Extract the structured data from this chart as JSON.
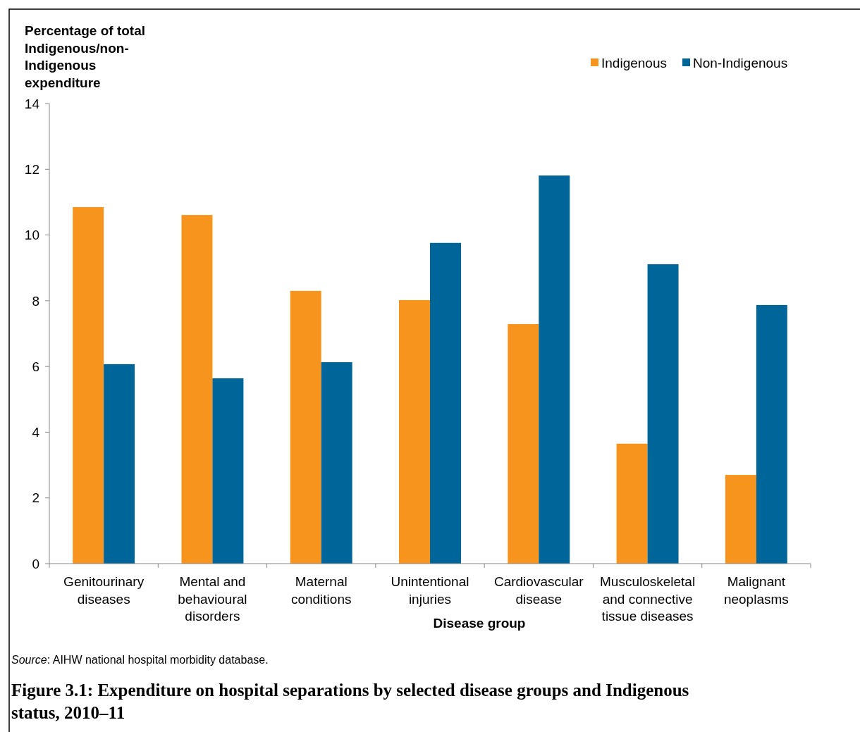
{
  "chart_data": {
    "type": "bar",
    "title": "Figure 3.1: Expenditure on hospital separations by selected disease groups and Indigenous status, 2010–11",
    "xlabel": "Disease group",
    "ylabel": "Percentage of total Indigenous/non-Indigenous expenditure",
    "annotations": [
      "Source: AIHW national hospital morbidity database."
    ],
    "categories": [
      "Genitourinary diseases",
      "Mental and behavioural disorders",
      "Maternal conditions",
      "Unintentional injuries",
      "Cardiovascular disease",
      "Musculoskeletal and connective tissue diseases",
      "Malignant neoplasms"
    ],
    "series": [
      {
        "name": "Indigenous",
        "color": "#f7941d",
        "values": [
          10.85,
          10.61,
          8.3,
          8.02,
          7.29,
          3.65,
          2.7
        ]
      },
      {
        "name": "Non-Indigenous",
        "color": "#006699",
        "values": [
          6.07,
          5.64,
          6.13,
          9.76,
          11.81,
          9.11,
          7.87
        ]
      }
    ],
    "ylim": [
      0,
      14
    ],
    "yticks": [
      0,
      2,
      4,
      6,
      8,
      10,
      12,
      14
    ],
    "grid": false,
    "legend": "top right"
  }
}
